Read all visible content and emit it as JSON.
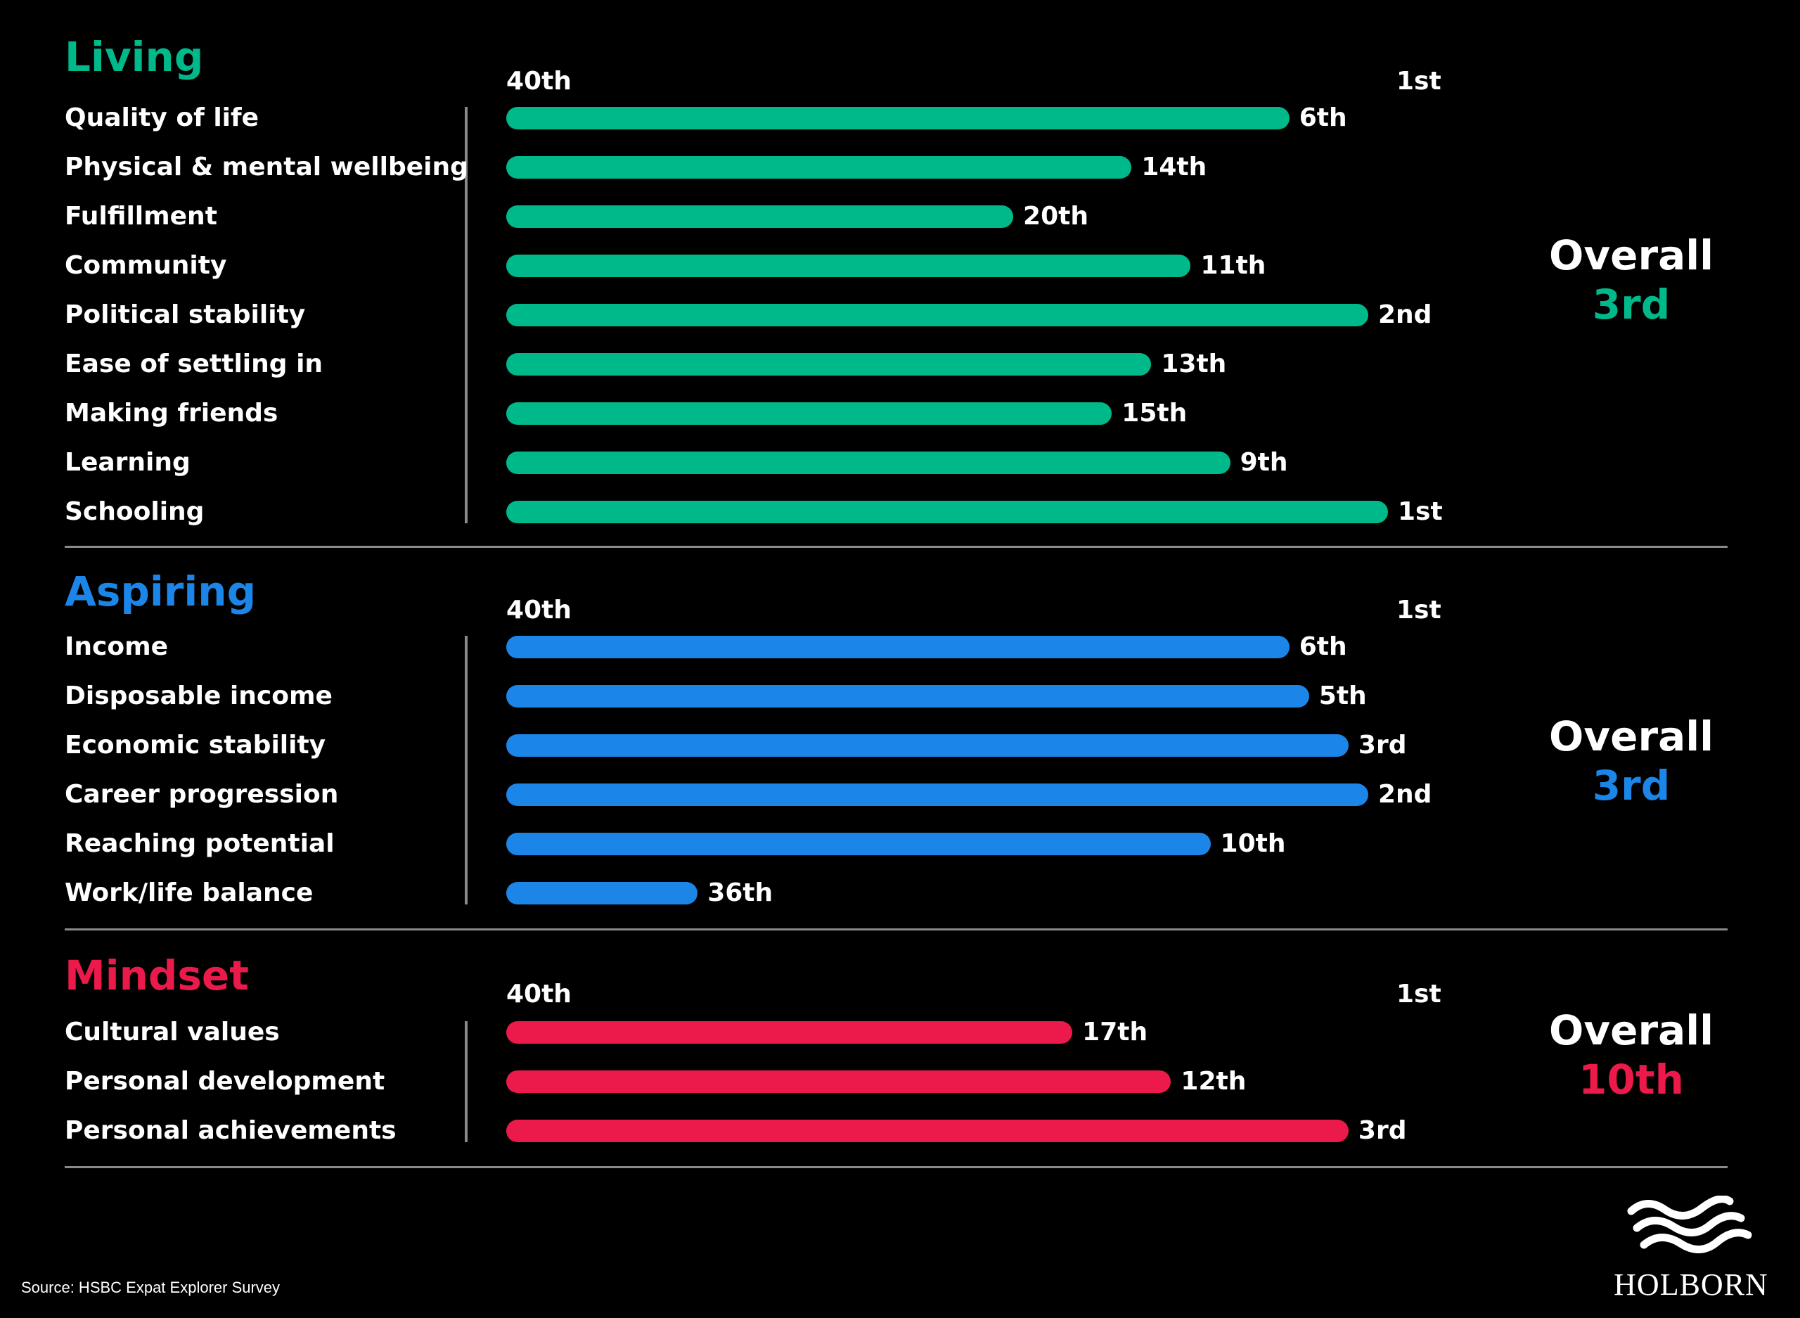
{
  "axis": {
    "left_label": "40th",
    "right_label": "1st",
    "min_rank": 40,
    "max_rank": 1
  },
  "colors": {
    "living": "#00b98a",
    "aspiring": "#1c85e8",
    "mindset": "#ec1a4b",
    "background": "#000000",
    "text": "#ffffff",
    "rule": "#8a8a8a"
  },
  "overall_word": "Overall",
  "source": "Source: HSBC Expat Explorer Survey",
  "logo": {
    "text": "HOLBORN",
    "icon": "waves-icon"
  },
  "chart_data": [
    {
      "type": "bar",
      "title": "Living",
      "overall": "3rd",
      "categories": [
        "Quality of life",
        "Physical & mental wellbeing",
        "Fulfillment",
        "Community",
        "Political stability",
        "Ease of settling in",
        "Making friends",
        "Learning",
        "Schooling"
      ],
      "ranks": [
        6,
        14,
        20,
        11,
        2,
        13,
        15,
        9,
        1
      ],
      "rank_labels": [
        "6th",
        "14th",
        "20th",
        "11th",
        "2nd",
        "13th",
        "15th",
        "9th",
        "1st"
      ]
    },
    {
      "type": "bar",
      "title": "Aspiring",
      "overall": "3rd",
      "categories": [
        "Income",
        "Disposable income",
        "Economic stability",
        "Career progression",
        "Reaching potential",
        "Work/life balance"
      ],
      "ranks": [
        6,
        5,
        3,
        2,
        10,
        36
      ],
      "rank_labels": [
        "6th",
        "5th",
        "3rd",
        "2nd",
        "10th",
        "36th"
      ]
    },
    {
      "type": "bar",
      "title": "Mindset",
      "overall": "10th",
      "categories": [
        "Cultural values",
        "Personal development",
        "Personal achievements"
      ],
      "ranks": [
        17,
        12,
        3
      ],
      "rank_labels": [
        "17th",
        "12th",
        "3rd"
      ]
    }
  ]
}
